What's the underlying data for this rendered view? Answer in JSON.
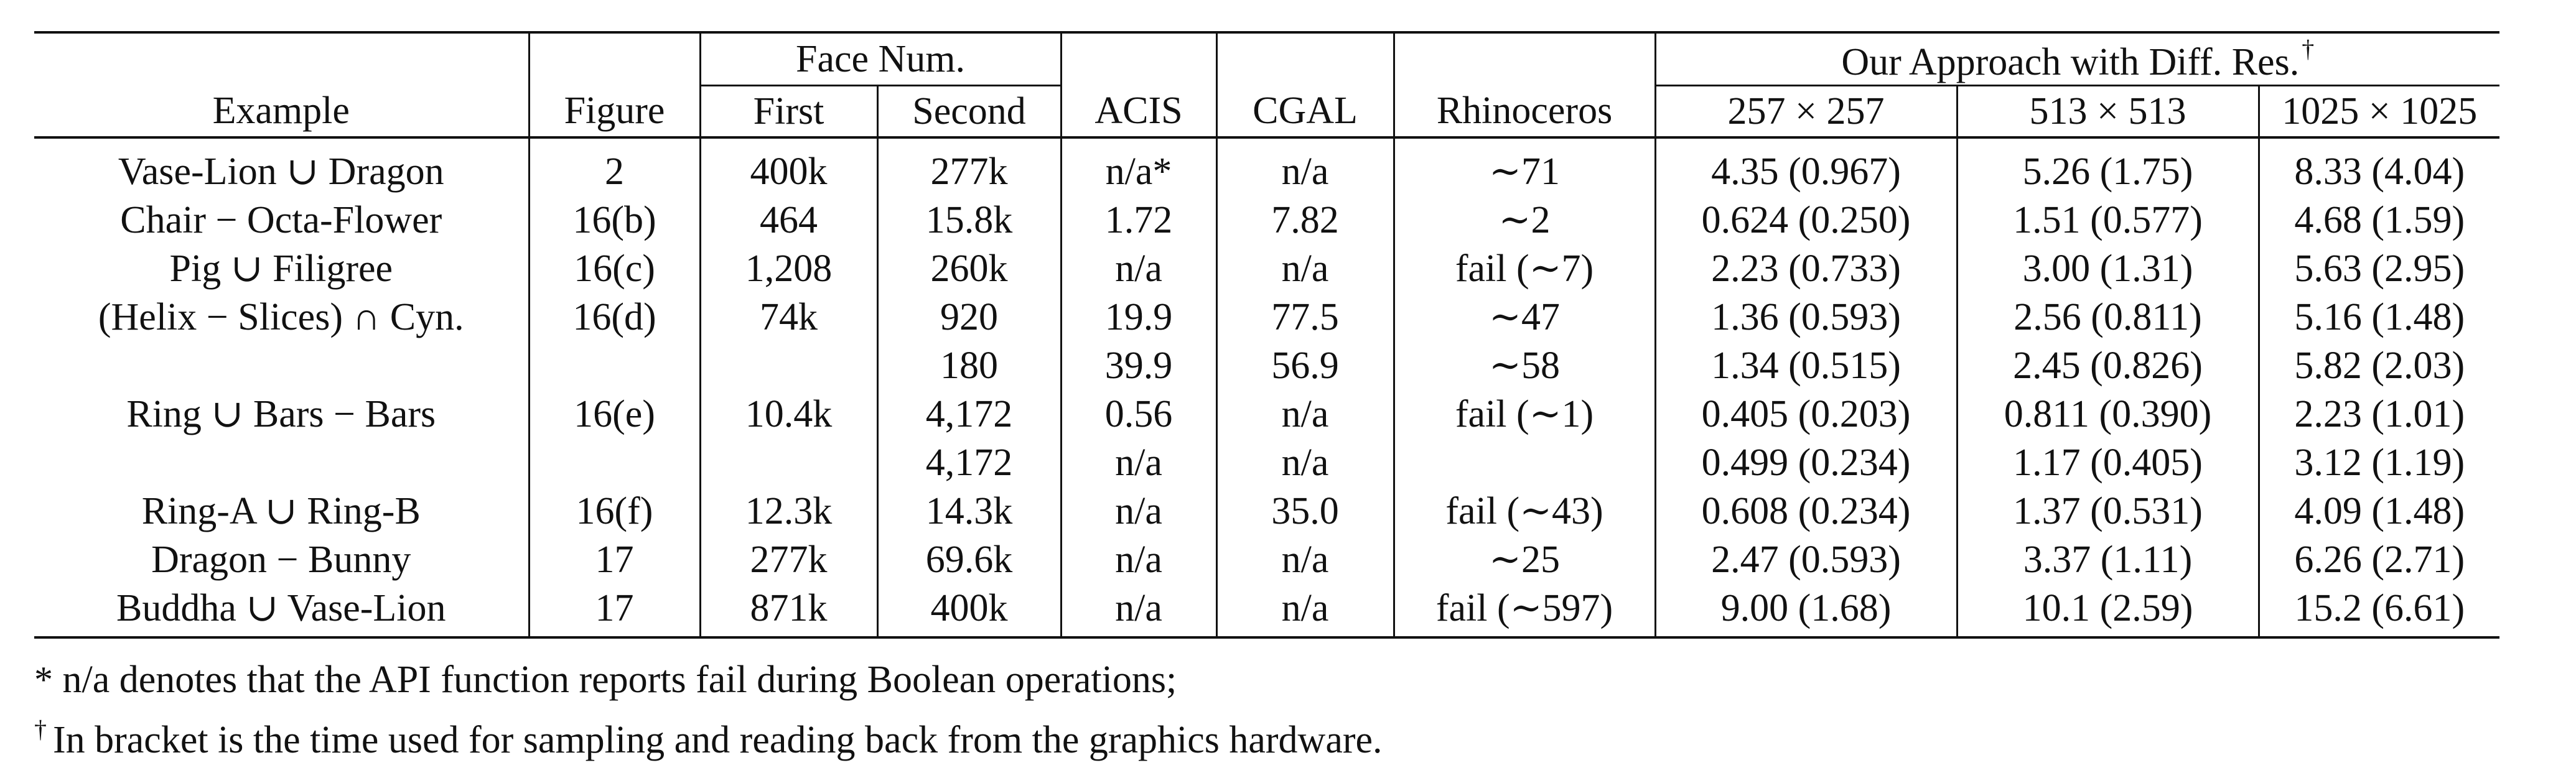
{
  "table": {
    "header": {
      "example": "Example",
      "figure": "Figure",
      "face_num": "Face Num.",
      "first": "First",
      "second": "Second",
      "acis": "ACIS",
      "cgal": "CGAL",
      "rhinoceros": "Rhinoceros",
      "our_approach": "Our Approach with Diff. Res.",
      "dagger": "†",
      "res_257": "257 × 257",
      "res_513": "513 × 513",
      "res_1025": "1025 × 1025"
    },
    "rows": [
      {
        "example": "Vase-Lion ∪ Dragon",
        "figure": "2",
        "first": "400k",
        "second": "277k",
        "acis": "n/a*",
        "cgal": "n/a",
        "rhino": "∼71",
        "r257": "4.35 (0.967)",
        "r513": "5.26 (1.75)",
        "r1025": "8.33 (4.04)"
      },
      {
        "example": "Chair − Octa-Flower",
        "figure": "16(b)",
        "first": "464",
        "second": "15.8k",
        "acis": "1.72",
        "cgal": "7.82",
        "rhino": "∼2",
        "r257": "0.624 (0.250)",
        "r513": "1.51 (0.577)",
        "r1025": "4.68 (1.59)"
      },
      {
        "example": "Pig ∪ Filigree",
        "figure": "16(c)",
        "first": "1,208",
        "second": "260k",
        "acis": "n/a",
        "cgal": "n/a",
        "rhino": "fail (∼7)",
        "r257": "2.23 (0.733)",
        "r513": "3.00 (1.31)",
        "r1025": "5.63 (2.95)"
      },
      {
        "example": "(Helix − Slices) ∩ Cyn.",
        "figure": "16(d)",
        "first": "74k",
        "second": "920",
        "acis": "19.9",
        "cgal": "77.5",
        "rhino": "∼47",
        "r257": "1.36 (0.593)",
        "r513": "2.56 (0.811)",
        "r1025": "5.16 (1.48)"
      },
      {
        "example": "",
        "figure": "",
        "first": "",
        "second": "180",
        "acis": "39.9",
        "cgal": "56.9",
        "rhino": "∼58",
        "r257": "1.34 (0.515)",
        "r513": "2.45 (0.826)",
        "r1025": "5.82 (2.03)"
      },
      {
        "example": "Ring ∪ Bars − Bars",
        "figure": "16(e)",
        "first": "10.4k",
        "second": "4,172",
        "acis": "0.56",
        "cgal": "n/a",
        "rhino": "fail (∼1)",
        "r257": "0.405 (0.203)",
        "r513": "0.811 (0.390)",
        "r1025": "2.23 (1.01)"
      },
      {
        "example": "",
        "figure": "",
        "first": "",
        "second": "4,172",
        "acis": "n/a",
        "cgal": "n/a",
        "rhino": "",
        "r257": "0.499 (0.234)",
        "r513": "1.17 (0.405)",
        "r1025": "3.12 (1.19)"
      },
      {
        "example": "Ring-A ∪ Ring-B",
        "figure": "16(f)",
        "first": "12.3k",
        "second": "14.3k",
        "acis": "n/a",
        "cgal": "35.0",
        "rhino": "fail (∼43)",
        "r257": "0.608 (0.234)",
        "r513": "1.37 (0.531)",
        "r1025": "4.09 (1.48)"
      },
      {
        "example": "Dragon − Bunny",
        "figure": "17",
        "first": "277k",
        "second": "69.6k",
        "acis": "n/a",
        "cgal": "n/a",
        "rhino": "∼25",
        "r257": "2.47 (0.593)",
        "r513": "3.37 (1.11)",
        "r1025": "6.26 (2.71)"
      },
      {
        "example": "Buddha ∪ Vase-Lion",
        "figure": "17",
        "first": "871k",
        "second": "400k",
        "acis": "n/a",
        "cgal": "n/a",
        "rhino": "fail (∼597)",
        "r257": "9.00 (1.68)",
        "r513": "10.1 (2.59)",
        "r1025": "15.2 (6.61)"
      }
    ]
  },
  "footnotes": {
    "star_symbol": "*",
    "star_text": "n/a denotes that the API function reports fail during Boolean operations;",
    "dagger_symbol": "†",
    "dagger_text": "In bracket is the time used for sampling and reading back from the graphics hardware."
  }
}
